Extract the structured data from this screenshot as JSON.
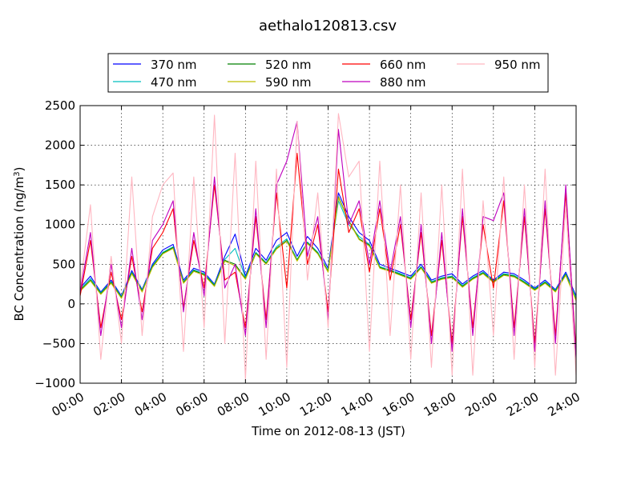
{
  "chart_data": {
    "type": "line",
    "title": "aethalo120813.csv",
    "xlabel": "Time on 2012-08-13 (JST)",
    "ylabel": "BC Concentration (ng/m",
    "ylabel_sup": "3",
    "ylabel_end": ")",
    "xlim": [
      "00:00",
      "24:00"
    ],
    "ylim": [
      -1000,
      2500
    ],
    "x_ticks": [
      "00:00",
      "02:00",
      "04:00",
      "06:00",
      "08:00",
      "10:00",
      "12:00",
      "14:00",
      "16:00",
      "18:00",
      "20:00",
      "22:00",
      "24:00"
    ],
    "y_ticks": [
      -1000,
      -500,
      0,
      500,
      1000,
      1500,
      2000,
      2500
    ],
    "grid": true,
    "legend_position": "top",
    "x_hours": [
      0,
      0.5,
      1,
      1.5,
      2,
      2.5,
      3,
      3.5,
      4,
      4.5,
      5,
      5.5,
      6,
      6.5,
      7,
      7.5,
      8,
      8.5,
      9,
      9.5,
      10,
      10.5,
      11,
      11.5,
      12,
      12.5,
      13,
      13.5,
      14,
      14.5,
      15,
      15.5,
      16,
      16.5,
      17,
      17.5,
      18,
      18.5,
      19,
      19.5,
      20,
      20.5,
      21,
      21.5,
      22,
      22.5,
      23,
      23.5,
      24
    ],
    "series": [
      {
        "name": "370 nm",
        "color": "#0000ff",
        "values": [
          200,
          350,
          150,
          300,
          100,
          420,
          180,
          500,
          680,
          750,
          300,
          450,
          400,
          250,
          600,
          880,
          350,
          700,
          550,
          800,
          900,
          600,
          850,
          700,
          450,
          1400,
          1100,
          900,
          800,
          500,
          450,
          400,
          350,
          500,
          300,
          350,
          380,
          250,
          350,
          420,
          300,
          400,
          380,
          300,
          200,
          300,
          180,
          400,
          100
        ]
      },
      {
        "name": "470 nm",
        "color": "#00bfbf",
        "values": [
          180,
          320,
          140,
          280,
          90,
          400,
          170,
          480,
          650,
          720,
          280,
          430,
          380,
          240,
          560,
          700,
          330,
          650,
          520,
          720,
          820,
          560,
          780,
          650,
          420,
          1300,
          1000,
          850,
          750,
          470,
          430,
          380,
          330,
          470,
          280,
          330,
          350,
          230,
          330,
          400,
          290,
          380,
          360,
          280,
          190,
          280,
          170,
          380,
          80
        ]
      },
      {
        "name": "520 nm",
        "color": "#008000",
        "values": [
          170,
          300,
          130,
          270,
          80,
          390,
          160,
          470,
          640,
          710,
          270,
          420,
          370,
          230,
          550,
          500,
          320,
          640,
          510,
          700,
          800,
          550,
          770,
          640,
          410,
          1350,
          1050,
          820,
          740,
          460,
          420,
          370,
          320,
          460,
          270,
          320,
          340,
          220,
          320,
          390,
          280,
          370,
          350,
          270,
          180,
          270,
          160,
          370,
          50
        ]
      },
      {
        "name": "590 nm",
        "color": "#bfbf00",
        "values": [
          160,
          290,
          120,
          260,
          70,
          380,
          150,
          460,
          630,
          700,
          260,
          410,
          360,
          220,
          540,
          480,
          310,
          630,
          500,
          690,
          790,
          540,
          760,
          630,
          400,
          1340,
          1040,
          810,
          730,
          450,
          410,
          360,
          310,
          450,
          260,
          310,
          330,
          210,
          310,
          380,
          270,
          360,
          340,
          260,
          170,
          260,
          150,
          360,
          40
        ]
      },
      {
        "name": "660 nm",
        "color": "#ff0000",
        "values": [
          100,
          800,
          -300,
          400,
          -200,
          600,
          -100,
          700,
          900,
          1200,
          -50,
          800,
          200,
          1500,
          300,
          400,
          -300,
          1100,
          -200,
          1400,
          200,
          1900,
          500,
          1000,
          -100,
          1700,
          900,
          1200,
          400,
          1200,
          300,
          1000,
          -200,
          900,
          -400,
          800,
          -500,
          1100,
          -300,
          1000,
          200,
          1300,
          -300,
          1100,
          -500,
          1200,
          -400,
          1400,
          -600
        ]
      },
      {
        "name": "880 nm",
        "color": "#bf00bf",
        "values": [
          150,
          900,
          -400,
          500,
          -300,
          700,
          -200,
          800,
          1000,
          1300,
          -100,
          900,
          100,
          1600,
          200,
          500,
          -400,
          1200,
          -300,
          1500,
          1800,
          2300,
          600,
          1100,
          -200,
          2200,
          1000,
          1300,
          500,
          1300,
          400,
          1100,
          -300,
          1000,
          -500,
          900,
          -600,
          1200,
          -400,
          1100,
          1050,
          1400,
          -400,
          1200,
          -600,
          1300,
          -500,
          1500,
          -700
        ]
      },
      {
        "name": "950 nm",
        "color": "#ffb6c1",
        "values": [
          200,
          1250,
          -700,
          600,
          -500,
          1600,
          -400,
          1100,
          1500,
          1650,
          -600,
          1600,
          -300,
          2380,
          -500,
          1900,
          -950,
          1800,
          -700,
          1700,
          -800,
          2300,
          300,
          1400,
          -300,
          2400,
          1600,
          1800,
          -600,
          1800,
          -400,
          1500,
          -700,
          1400,
          -800,
          1500,
          -900,
          1700,
          -900,
          1300,
          -400,
          1600,
          -700,
          1500,
          -800,
          1700,
          -900,
          1250,
          -900
        ]
      }
    ]
  }
}
